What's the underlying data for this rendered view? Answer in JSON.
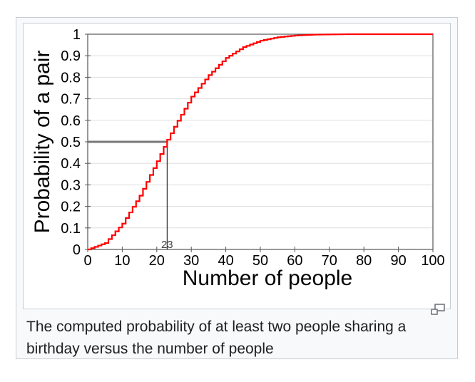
{
  "caption": "The computed probability of at least two people sharing a birthday versus the number of people",
  "colors": {
    "curve": "#ff0000",
    "annotation": "#777777",
    "grid": "#dddddd",
    "axis": "#555555",
    "text": "#000000"
  },
  "icons": {
    "magnify": "magnify-clip-icon"
  },
  "chart_data": {
    "type": "line",
    "xlabel": "Number of people",
    "ylabel": "Probability of a pair",
    "xlim": [
      0,
      100
    ],
    "ylim": [
      0,
      1
    ],
    "xticks": [
      0,
      10,
      20,
      30,
      40,
      50,
      60,
      70,
      80,
      90,
      100
    ],
    "xtick_labels": [
      "0",
      "10",
      "20",
      "30",
      "40",
      "50",
      "60",
      "70",
      "80",
      "90",
      "100"
    ],
    "yticks": [
      0,
      0.1,
      0.2,
      0.3,
      0.4,
      0.5,
      0.6,
      0.7,
      0.8,
      0.9,
      1
    ],
    "ytick_labels": [
      "0",
      "0.1",
      "0.2",
      "0.3",
      "0.4",
      "0.5",
      "0.6",
      "0.7",
      "0.8",
      "0.9",
      "1"
    ],
    "grid": true,
    "annotation": {
      "label": "23",
      "x": 23,
      "y": 0.5
    },
    "series": [
      {
        "style": "step",
        "x": [
          0,
          5,
          10,
          15,
          20,
          23,
          25,
          30,
          35,
          40,
          45,
          50,
          55,
          60,
          65,
          70,
          75,
          80,
          90,
          100
        ],
        "y": [
          0,
          0.03,
          0.12,
          0.25,
          0.41,
          0.51,
          0.57,
          0.71,
          0.81,
          0.89,
          0.94,
          0.97,
          0.986,
          0.994,
          0.998,
          0.999,
          1.0,
          1.0,
          1.0,
          1.0
        ]
      }
    ]
  }
}
